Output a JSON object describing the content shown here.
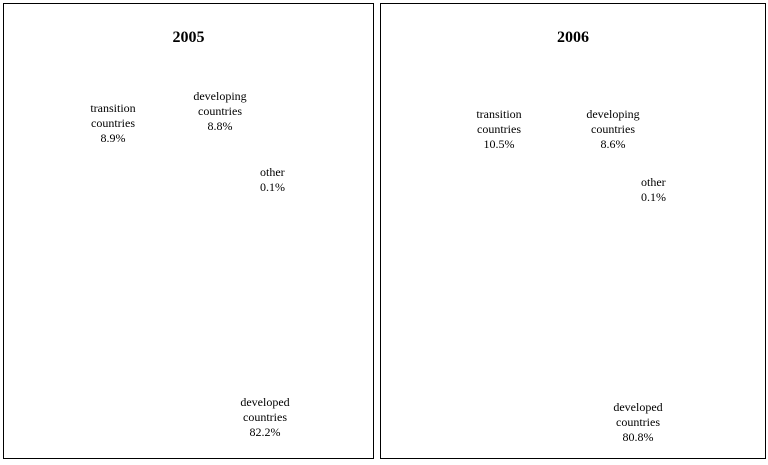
{
  "chart_data": [
    {
      "type": "pie",
      "title": "2005",
      "slices": [
        {
          "label": "developed countries",
          "value": 82.2,
          "display": "82.2%"
        },
        {
          "label": "transition countries",
          "value": 8.9,
          "display": "8.9%"
        },
        {
          "label": "developing countries",
          "value": 8.8,
          "display": "8.8%"
        },
        {
          "label": "other",
          "value": 0.1,
          "display": "0.1%"
        }
      ]
    },
    {
      "type": "pie",
      "title": "2006",
      "slices": [
        {
          "label": "developed countries",
          "value": 80.8,
          "display": "80.8%"
        },
        {
          "label": "transition countries",
          "value": 10.5,
          "display": "10.5%"
        },
        {
          "label": "developing countries",
          "value": 8.6,
          "display": "8.6%"
        },
        {
          "label": "other",
          "value": 0.1,
          "display": "0.1%"
        }
      ]
    }
  ],
  "labels": {
    "developed": [
      "developed",
      "countries"
    ],
    "transition": [
      "transition",
      "countries"
    ],
    "developing": [
      "developing",
      "countries"
    ],
    "other": "other"
  },
  "colors": {
    "developed": "#c8ccff",
    "transition": "#5a5aff",
    "developing": "#6a6aff",
    "outline": "#000000"
  }
}
